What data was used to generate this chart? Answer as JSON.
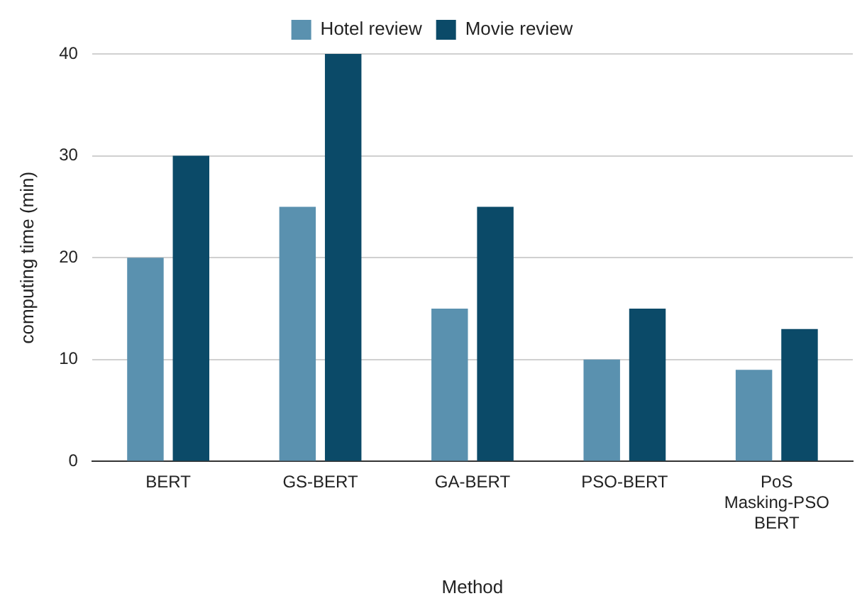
{
  "chart_data": {
    "type": "bar",
    "xlabel": "Method",
    "ylabel": "computing time (min)",
    "categories": [
      "BERT",
      "GS-BERT",
      "GA-BERT",
      "PSO-BERT",
      "PoS Masking-PSO BERT"
    ],
    "series": [
      {
        "name": "Hotel review",
        "color": "#5a91af",
        "values": [
          20,
          25,
          15,
          10,
          9
        ]
      },
      {
        "name": "Movie review",
        "color": "#0b4a68",
        "values": [
          30,
          40,
          25,
          15,
          13
        ]
      }
    ],
    "ylim": [
      0,
      40
    ],
    "yticks": [
      0,
      10,
      20,
      30,
      40
    ],
    "grid": "y",
    "legend": "top"
  }
}
